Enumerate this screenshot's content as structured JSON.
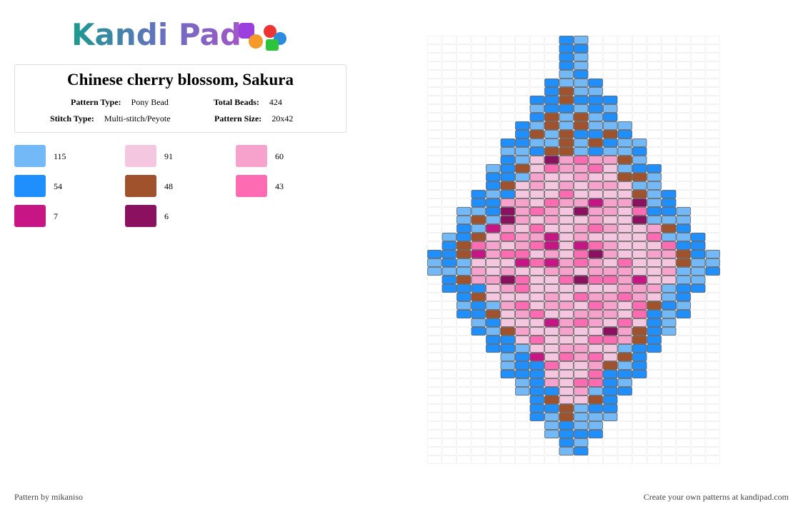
{
  "header": {
    "logo": "Kandi Pad"
  },
  "pattern": {
    "title": "Chinese cherry blossom, Sakura",
    "fields": [
      {
        "label": "Pattern Type:",
        "value": "Pony Bead"
      },
      {
        "label": "Total Beads:",
        "value": "424"
      },
      {
        "label": "Stitch Type:",
        "value": "Multi-stitch/Peyote"
      },
      {
        "label": "Pattern Size:",
        "value": "20x42"
      }
    ]
  },
  "colors": [
    {
      "color": "#74b9f7",
      "count": 115
    },
    {
      "color": "#f4c6df",
      "count": 91
    },
    {
      "color": "#f7a1cd",
      "count": 60
    },
    {
      "color": "#1e8ffc",
      "count": 54
    },
    {
      "color": "#a0522d",
      "count": 48
    },
    {
      "color": "#fd6cb3",
      "count": 43
    },
    {
      "color": "#c71585",
      "count": 7
    },
    {
      "color": "#8b1060",
      "count": 6
    }
  ],
  "footer": {
    "author": "Pattern by mikaniso",
    "credit": "Create your own patterns at kandipad.com"
  }
}
